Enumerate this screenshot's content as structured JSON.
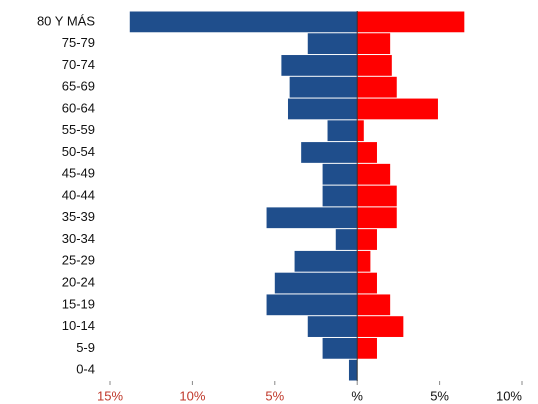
{
  "chart_data": {
    "type": "pyramid",
    "categories": [
      "80 Y MÁS",
      "75-79",
      "70-74",
      "65-69",
      "60-64",
      "55-59",
      "50-54",
      "45-49",
      "40-44",
      "35-39",
      "30-34",
      "25-29",
      "20-24",
      "15-19",
      "10-14",
      "5-9",
      "0-4"
    ],
    "series": [
      {
        "color": "#1f4e8c",
        "values": [
          -13.8,
          -3.0,
          -4.6,
          -4.1,
          -4.2,
          -1.8,
          -3.4,
          -2.1,
          -2.1,
          -5.5,
          -1.3,
          -3.8,
          -5.0,
          -5.5,
          -3.0,
          -2.1,
          -0.5
        ]
      },
      {
        "color": "#ff0000",
        "values": [
          6.5,
          2.0,
          2.1,
          2.4,
          4.9,
          0.4,
          1.2,
          2.0,
          2.4,
          2.4,
          1.2,
          0.8,
          1.2,
          2.0,
          2.8,
          1.2,
          0
        ]
      }
    ],
    "xlim": [
      -15,
      10
    ],
    "xticks": [
      {
        "value": -15,
        "label": "15%"
      },
      {
        "value": -10,
        "label": "10%"
      },
      {
        "value": -5,
        "label": "5%"
      },
      {
        "value": 0,
        "label": "%"
      },
      {
        "value": 5,
        "label": "5%"
      },
      {
        "value": 10,
        "label": "10%"
      }
    ],
    "negative_tick_color": "#c0392b"
  }
}
